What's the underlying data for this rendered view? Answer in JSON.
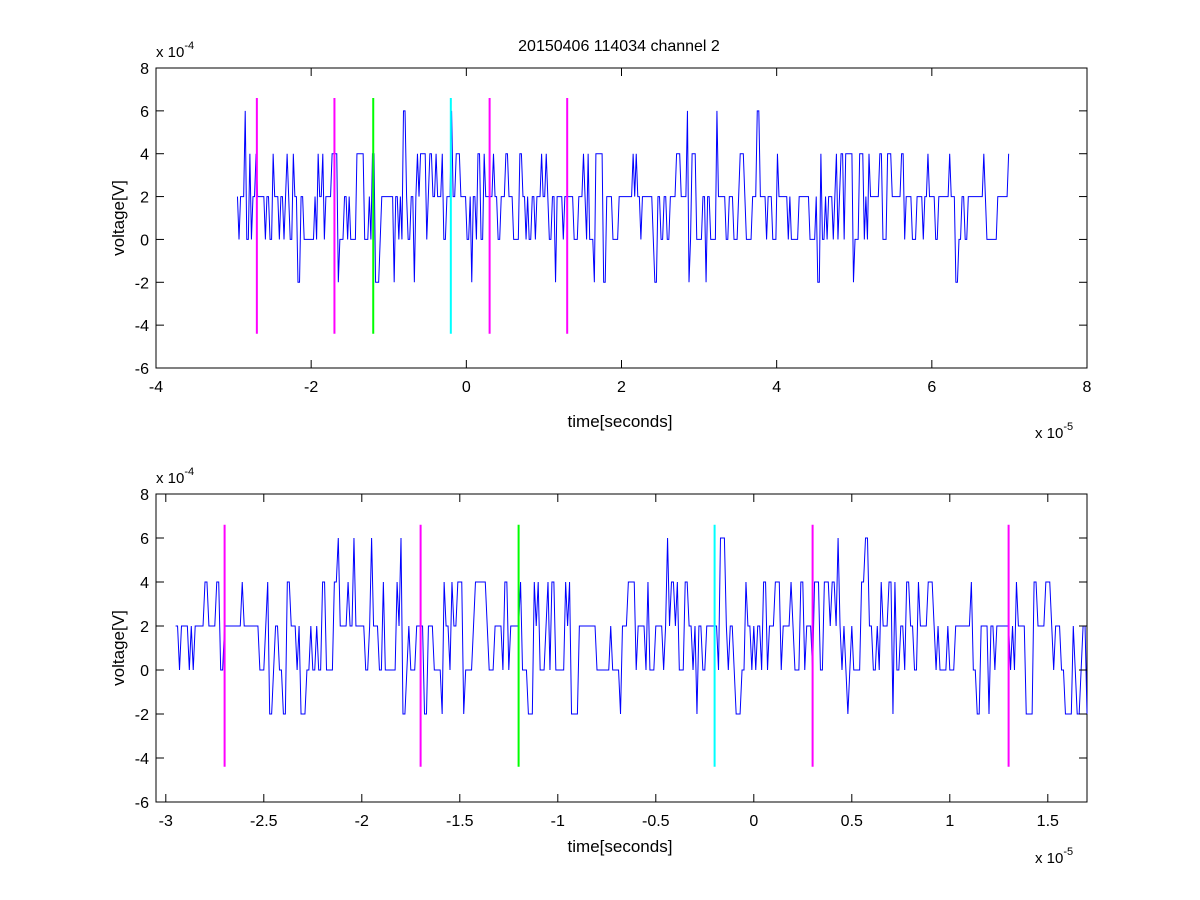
{
  "figure": {
    "title": "20150406 114034 channel 2"
  },
  "chart_data": [
    {
      "type": "line",
      "title": "20150406 114034 channel 2",
      "xlabel": "time[seconds]",
      "ylabel": "voltage[V]",
      "x_exponent_label": "x 10",
      "x_exponent": "-5",
      "y_exponent_label": "x 10",
      "y_exponent": "-4",
      "xlim": [
        -4,
        8
      ],
      "ylim": [
        -6,
        8
      ],
      "x_ticks": [
        -4,
        -2,
        0,
        2,
        4,
        6,
        8
      ],
      "y_ticks": [
        -6,
        -4,
        -2,
        0,
        2,
        4,
        6,
        8
      ],
      "x_tick_labels": [
        "-4",
        "-2",
        "0",
        "2",
        "4",
        "6",
        "8"
      ],
      "y_tick_labels": [
        "-6",
        "-4",
        "-2",
        "0",
        "2",
        "4",
        "6",
        "8"
      ],
      "grid": false,
      "series": [
        {
          "color": "#0000ff",
          "x_start": -2.95,
          "x_end": 7.0,
          "sample_step": 0.02,
          "levels": [
            -4,
            -2,
            0,
            2,
            4,
            6
          ],
          "seed": 7
        }
      ],
      "vlines": [
        {
          "x": -2.7,
          "y_range": [
            -4.4,
            6.6
          ],
          "color": "#ff00ff"
        },
        {
          "x": -1.7,
          "y_range": [
            -4.4,
            6.6
          ],
          "color": "#ff00ff"
        },
        {
          "x": -1.2,
          "y_range": [
            -4.4,
            6.6
          ],
          "color": "#00ff00"
        },
        {
          "x": -0.2,
          "y_range": [
            -4.4,
            6.6
          ],
          "color": "#00ffff"
        },
        {
          "x": 0.3,
          "y_range": [
            -4.4,
            6.6
          ],
          "color": "#ff00ff"
        },
        {
          "x": 1.3,
          "y_range": [
            -4.4,
            6.6
          ],
          "color": "#ff00ff"
        }
      ]
    },
    {
      "type": "line",
      "xlabel": "time[seconds]",
      "ylabel": "voltage[V]",
      "x_exponent_label": "x 10",
      "x_exponent": "-5",
      "y_exponent_label": "x 10",
      "y_exponent": "-4",
      "xlim": [
        -3.05,
        1.7
      ],
      "ylim": [
        -6,
        8
      ],
      "x_ticks": [
        -3,
        -2.5,
        -2,
        -1.5,
        -1,
        -0.5,
        0,
        0.5,
        1,
        1.5
      ],
      "y_ticks": [
        -6,
        -4,
        -2,
        0,
        2,
        4,
        6,
        8
      ],
      "x_tick_labels": [
        "-3",
        "-2.5",
        "-2",
        "-1.5",
        "-1",
        "-0.5",
        "0",
        "0.5",
        "1",
        "1.5"
      ],
      "y_tick_labels": [
        "-6",
        "-4",
        "-2",
        "0",
        "2",
        "4",
        "6",
        "8"
      ],
      "grid": false,
      "series": [
        {
          "color": "#0000ff",
          "x_start": -2.95,
          "x_end": 1.7,
          "sample_step": 0.01,
          "levels": [
            -4,
            -2,
            0,
            2,
            4,
            6
          ],
          "seed": 11
        }
      ],
      "vlines": [
        {
          "x": -2.7,
          "y_range": [
            -4.4,
            6.6
          ],
          "color": "#ff00ff"
        },
        {
          "x": -1.7,
          "y_range": [
            -4.4,
            6.6
          ],
          "color": "#ff00ff"
        },
        {
          "x": -1.2,
          "y_range": [
            -4.4,
            6.6
          ],
          "color": "#00ff00"
        },
        {
          "x": -0.2,
          "y_range": [
            -4.4,
            6.6
          ],
          "color": "#00ffff"
        },
        {
          "x": 0.3,
          "y_range": [
            -4.4,
            6.6
          ],
          "color": "#ff00ff"
        },
        {
          "x": 1.3,
          "y_range": [
            -4.4,
            6.6
          ],
          "color": "#ff00ff"
        }
      ]
    }
  ]
}
